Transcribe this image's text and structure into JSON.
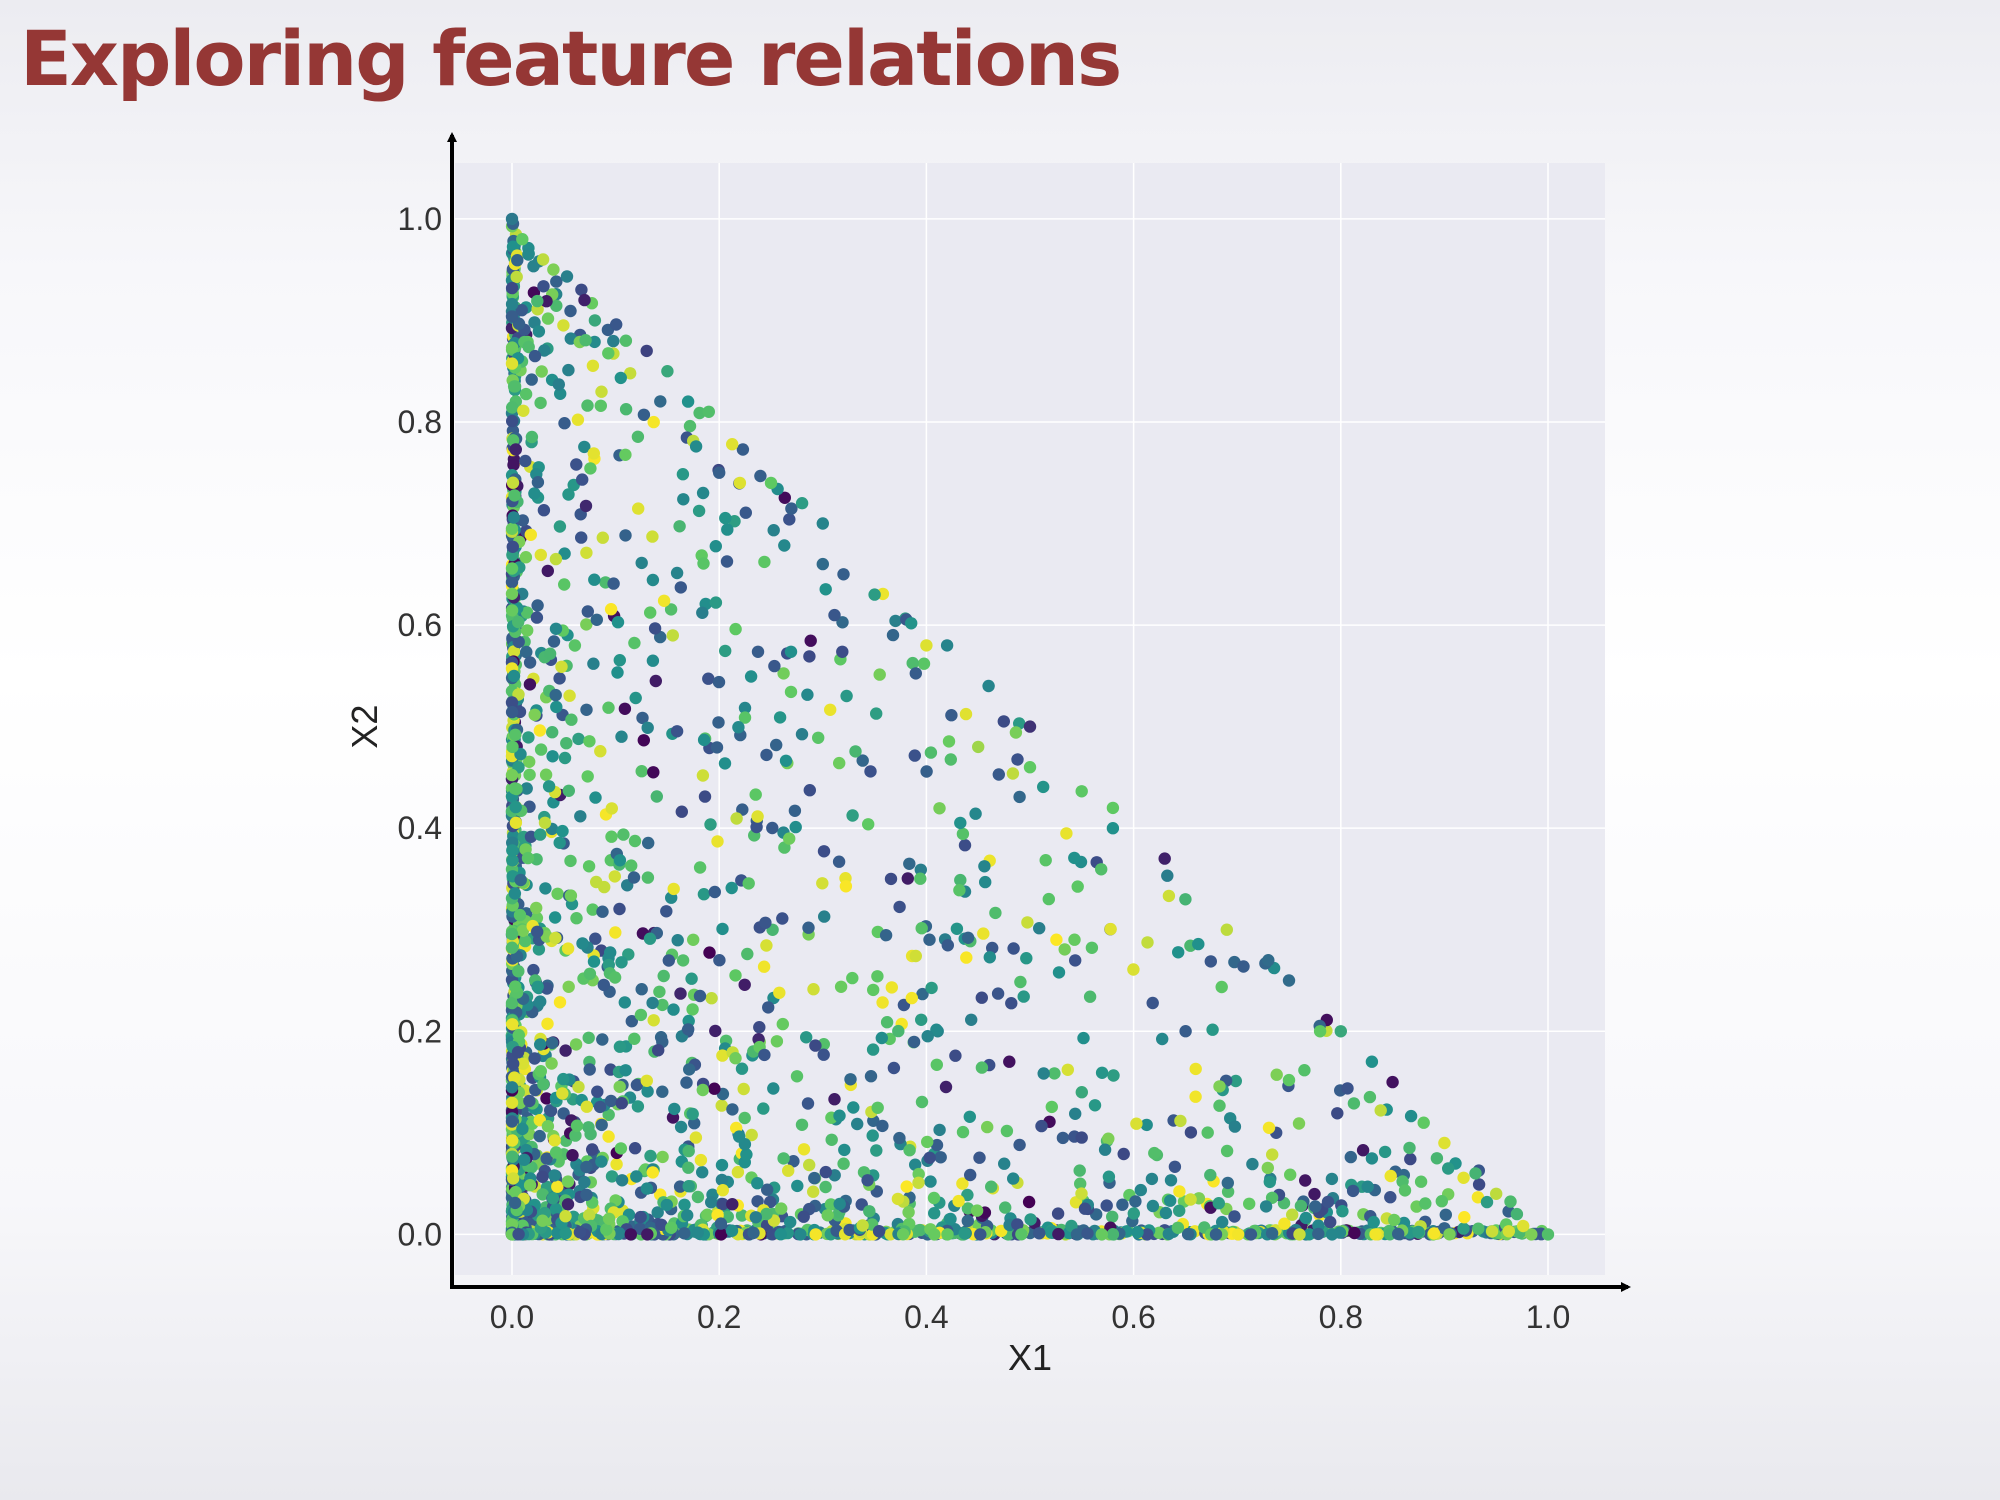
{
  "slide": {
    "title": "Exploring feature relations"
  },
  "colors": {
    "title": "#953735",
    "plot_background": "#eaeaf2",
    "grid": "#ffffff",
    "axis": "#000000",
    "colormap": [
      "#440154",
      "#3b528b",
      "#21918c",
      "#5ec962",
      "#fde725"
    ]
  },
  "chart_data": {
    "type": "scatter",
    "title": "",
    "xlabel": "X1",
    "ylabel": "X2",
    "xlim": [
      -0.055,
      1.055
    ],
    "ylim": [
      -0.04,
      1.055
    ],
    "xticks": [
      0.0,
      0.2,
      0.4,
      0.6,
      0.8,
      1.0
    ],
    "yticks": [
      0.0,
      0.2,
      0.4,
      0.6,
      0.8,
      1.0
    ],
    "xtick_labels": [
      "0.0",
      "0.2",
      "0.4",
      "0.6",
      "0.8",
      "1.0"
    ],
    "ytick_labels": [
      "0.0",
      "0.2",
      "0.4",
      "0.6",
      "0.8",
      "1.0"
    ],
    "grid": true,
    "colormap": "viridis",
    "constraint": "points lie in the triangle X1 >= 0, X2 >= 0, X1 + X2 <= 1; densest near the origin, many points on X1 = 0 and X2 = 0",
    "points": [
      [
        0.0,
        1.0,
        0.4
      ],
      [
        0.01,
        0.98,
        0.75
      ],
      [
        0.03,
        0.96,
        0.9
      ],
      [
        0.04,
        0.95,
        0.8
      ],
      [
        0.07,
        0.92,
        0.1
      ],
      [
        0.08,
        0.9,
        0.6
      ],
      [
        0.11,
        0.88,
        0.7
      ],
      [
        0.13,
        0.87,
        0.2
      ],
      [
        0.15,
        0.85,
        0.6
      ],
      [
        0.17,
        0.82,
        0.5
      ],
      [
        0.19,
        0.81,
        0.7
      ],
      [
        0.2,
        0.75,
        0.3
      ],
      [
        0.22,
        0.74,
        0.95
      ],
      [
        0.25,
        0.74,
        0.75
      ],
      [
        0.28,
        0.72,
        0.55
      ],
      [
        0.3,
        0.7,
        0.45
      ],
      [
        0.32,
        0.65,
        0.3
      ],
      [
        0.35,
        0.63,
        0.55
      ],
      [
        0.3,
        0.66,
        0.35
      ],
      [
        0.4,
        0.58,
        0.95
      ],
      [
        0.42,
        0.58,
        0.45
      ],
      [
        0.46,
        0.54,
        0.45
      ],
      [
        0.5,
        0.5,
        0.15
      ],
      [
        0.5,
        0.46,
        0.75
      ],
      [
        0.45,
        0.48,
        0.85
      ],
      [
        0.58,
        0.42,
        0.75
      ],
      [
        0.63,
        0.37,
        0.1
      ],
      [
        0.65,
        0.33,
        0.65
      ],
      [
        0.69,
        0.3,
        0.9
      ],
      [
        0.73,
        0.27,
        0.35
      ],
      [
        0.75,
        0.25,
        0.35
      ],
      [
        0.78,
        0.2,
        0.75
      ],
      [
        0.8,
        0.2,
        0.6
      ],
      [
        0.83,
        0.17,
        0.5
      ],
      [
        0.85,
        0.15,
        0.05
      ],
      [
        0.88,
        0.11,
        0.75
      ],
      [
        0.9,
        0.09,
        0.95
      ],
      [
        0.93,
        0.06,
        0.65
      ],
      [
        0.95,
        0.04,
        0.9
      ],
      [
        0.97,
        0.02,
        0.65
      ],
      [
        1.0,
        0.0,
        0.7
      ],
      [
        0.58,
        0.4,
        0.5
      ],
      [
        0.62,
        0.08,
        0.7
      ],
      [
        0.48,
        0.17,
        0.05
      ],
      [
        0.55,
        0.14,
        0.6
      ]
    ]
  }
}
